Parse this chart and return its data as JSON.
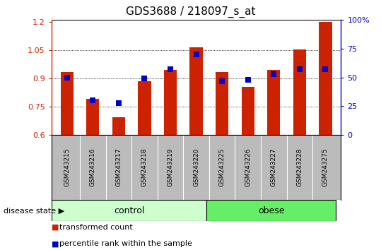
{
  "title": "GDS3688 / 218097_s_at",
  "categories": [
    "GSM243215",
    "GSM243216",
    "GSM243217",
    "GSM243218",
    "GSM243219",
    "GSM243220",
    "GSM243225",
    "GSM243226",
    "GSM243227",
    "GSM243228",
    "GSM243275"
  ],
  "red_values": [
    0.935,
    0.79,
    0.695,
    0.885,
    0.945,
    1.065,
    0.935,
    0.855,
    0.945,
    1.055,
    1.2
  ],
  "blue_percentiles": [
    50,
    30,
    28,
    49,
    57,
    70,
    47,
    48,
    53,
    57,
    57
  ],
  "ylim_left": [
    0.6,
    1.21
  ],
  "ylim_right": [
    0,
    100
  ],
  "yticks_left": [
    0.6,
    0.75,
    0.9,
    1.05,
    1.2
  ],
  "yticks_right": [
    0,
    25,
    50,
    75,
    100
  ],
  "ytick_labels_left": [
    "0.6",
    "0.75",
    "0.9",
    "1.05",
    "1.2"
  ],
  "ytick_labels_right": [
    "0",
    "25",
    "50",
    "75",
    "100%"
  ],
  "red_color": "#cc2200",
  "blue_color": "#0000cc",
  "bar_width": 0.5,
  "blue_marker_size": 6,
  "n_control": 6,
  "n_obese": 5,
  "group_control_label": "control",
  "group_obese_label": "obese",
  "disease_state_label": "disease state",
  "legend_red": "transformed count",
  "legend_blue": "percentile rank within the sample",
  "control_color": "#ccffcc",
  "obese_color": "#66ee66",
  "tick_label_area_color": "#bbbbbb",
  "baseline": 0.6
}
